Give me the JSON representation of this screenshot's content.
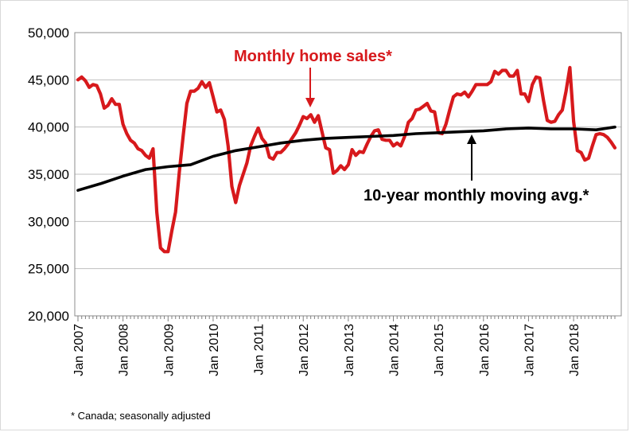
{
  "chart_data": {
    "type": "line",
    "ylim": [
      20000,
      50000
    ],
    "yticks": [
      "20,000",
      "25,000",
      "30,000",
      "35,000",
      "40,000",
      "45,000",
      "50,000"
    ],
    "ytick_values": [
      20000,
      25000,
      30000,
      35000,
      40000,
      45000,
      50000
    ],
    "xticks": [
      "Jan 2007",
      "Jan 2008",
      "Jan 2009",
      "Jan 2010",
      "Jan 2011",
      "Jan 2012",
      "Jan 2013",
      "Jan 2014",
      "Jan 2015",
      "Jan 2016",
      "Jan 2017",
      "Jan 2018"
    ],
    "xlim": [
      "2007-01",
      "2018-12"
    ],
    "grid": "horizontal",
    "colors": {
      "monthly": "#d7191c",
      "average": "#000000"
    },
    "series": [
      {
        "name": "Monthly home sales*",
        "points": [
          [
            "2007-01",
            45000
          ],
          [
            "2007-02",
            45300
          ],
          [
            "2007-03",
            44900
          ],
          [
            "2007-04",
            44200
          ],
          [
            "2007-05",
            44500
          ],
          [
            "2007-06",
            44400
          ],
          [
            "2007-07",
            43500
          ],
          [
            "2007-08",
            42000
          ],
          [
            "2007-09",
            42300
          ],
          [
            "2007-10",
            43000
          ],
          [
            "2007-11",
            42400
          ],
          [
            "2007-12",
            42400
          ],
          [
            "2008-01",
            40300
          ],
          [
            "2008-02",
            39300
          ],
          [
            "2008-03",
            38600
          ],
          [
            "2008-04",
            38300
          ],
          [
            "2008-05",
            37700
          ],
          [
            "2008-06",
            37500
          ],
          [
            "2008-07",
            37000
          ],
          [
            "2008-08",
            36700
          ],
          [
            "2008-09",
            37700
          ],
          [
            "2008-10",
            31000
          ],
          [
            "2008-11",
            27200
          ],
          [
            "2008-12",
            26800
          ],
          [
            "2009-01",
            26800
          ],
          [
            "2009-02",
            29000
          ],
          [
            "2009-03",
            31000
          ],
          [
            "2009-04",
            35200
          ],
          [
            "2009-05",
            39000
          ],
          [
            "2009-06",
            42500
          ],
          [
            "2009-07",
            43800
          ],
          [
            "2009-08",
            43800
          ],
          [
            "2009-09",
            44100
          ],
          [
            "2009-10",
            44800
          ],
          [
            "2009-11",
            44200
          ],
          [
            "2009-12",
            44700
          ],
          [
            "2010-01",
            43200
          ],
          [
            "2010-02",
            41600
          ],
          [
            "2010-03",
            41800
          ],
          [
            "2010-04",
            40800
          ],
          [
            "2010-05",
            38000
          ],
          [
            "2010-06",
            33700
          ],
          [
            "2010-07",
            32000
          ],
          [
            "2010-08",
            33800
          ],
          [
            "2010-09",
            35000
          ],
          [
            "2010-10",
            36200
          ],
          [
            "2010-11",
            38000
          ],
          [
            "2010-12",
            39000
          ],
          [
            "2011-01",
            39900
          ],
          [
            "2011-02",
            38800
          ],
          [
            "2011-03",
            38300
          ],
          [
            "2011-04",
            36800
          ],
          [
            "2011-05",
            36600
          ],
          [
            "2011-06",
            37300
          ],
          [
            "2011-07",
            37300
          ],
          [
            "2011-08",
            37700
          ],
          [
            "2011-09",
            38200
          ],
          [
            "2011-10",
            38800
          ],
          [
            "2011-11",
            39400
          ],
          [
            "2011-12",
            40200
          ],
          [
            "2012-01",
            41100
          ],
          [
            "2012-02",
            40900
          ],
          [
            "2012-03",
            41300
          ],
          [
            "2012-04",
            40500
          ],
          [
            "2012-05",
            41200
          ],
          [
            "2012-06",
            39500
          ],
          [
            "2012-07",
            37800
          ],
          [
            "2012-08",
            37600
          ],
          [
            "2012-09",
            35100
          ],
          [
            "2012-10",
            35400
          ],
          [
            "2012-11",
            35900
          ],
          [
            "2012-12",
            35500
          ],
          [
            "2013-01",
            36000
          ],
          [
            "2013-02",
            37600
          ],
          [
            "2013-03",
            37000
          ],
          [
            "2013-04",
            37400
          ],
          [
            "2013-05",
            37300
          ],
          [
            "2013-06",
            38200
          ],
          [
            "2013-07",
            39000
          ],
          [
            "2013-08",
            39600
          ],
          [
            "2013-09",
            39700
          ],
          [
            "2013-10",
            38700
          ],
          [
            "2013-11",
            38600
          ],
          [
            "2013-12",
            38600
          ],
          [
            "2014-01",
            38000
          ],
          [
            "2014-02",
            38300
          ],
          [
            "2014-03",
            38000
          ],
          [
            "2014-04",
            39000
          ],
          [
            "2014-05",
            40500
          ],
          [
            "2014-06",
            40900
          ],
          [
            "2014-07",
            41800
          ],
          [
            "2014-08",
            41900
          ],
          [
            "2014-09",
            42200
          ],
          [
            "2014-10",
            42500
          ],
          [
            "2014-11",
            41700
          ],
          [
            "2014-12",
            41600
          ],
          [
            "2015-01",
            39400
          ],
          [
            "2015-02",
            39300
          ],
          [
            "2015-03",
            40300
          ],
          [
            "2015-04",
            41800
          ],
          [
            "2015-05",
            43200
          ],
          [
            "2015-06",
            43500
          ],
          [
            "2015-07",
            43400
          ],
          [
            "2015-08",
            43700
          ],
          [
            "2015-09",
            43200
          ],
          [
            "2015-10",
            43800
          ],
          [
            "2015-11",
            44500
          ],
          [
            "2015-12",
            44500
          ],
          [
            "2016-01",
            44500
          ],
          [
            "2016-02",
            44500
          ],
          [
            "2016-03",
            44800
          ],
          [
            "2016-04",
            45900
          ],
          [
            "2016-05",
            45600
          ],
          [
            "2016-06",
            46000
          ],
          [
            "2016-07",
            46000
          ],
          [
            "2016-08",
            45400
          ],
          [
            "2016-09",
            45400
          ],
          [
            "2016-10",
            46000
          ],
          [
            "2016-11",
            43500
          ],
          [
            "2016-12",
            43500
          ],
          [
            "2017-01",
            42700
          ],
          [
            "2017-02",
            44500
          ],
          [
            "2017-03",
            45300
          ],
          [
            "2017-04",
            45200
          ],
          [
            "2017-05",
            42800
          ],
          [
            "2017-06",
            40700
          ],
          [
            "2017-07",
            40500
          ],
          [
            "2017-08",
            40600
          ],
          [
            "2017-09",
            41300
          ],
          [
            "2017-10",
            41800
          ],
          [
            "2017-11",
            43800
          ],
          [
            "2017-12",
            46300
          ],
          [
            "2018-01",
            40600
          ],
          [
            "2018-02",
            37500
          ],
          [
            "2018-03",
            37300
          ],
          [
            "2018-04",
            36500
          ],
          [
            "2018-05",
            36700
          ],
          [
            "2018-06",
            38000
          ],
          [
            "2018-07",
            39200
          ],
          [
            "2018-08",
            39300
          ],
          [
            "2018-09",
            39200
          ],
          [
            "2018-10",
            38900
          ],
          [
            "2018-11",
            38400
          ],
          [
            "2018-12",
            37800
          ]
        ]
      },
      {
        "name": "10-year monthly moving avg.*",
        "points": [
          [
            "2007-01",
            33300
          ],
          [
            "2007-07",
            34000
          ],
          [
            "2008-01",
            34800
          ],
          [
            "2008-07",
            35500
          ],
          [
            "2009-01",
            35800
          ],
          [
            "2009-07",
            36000
          ],
          [
            "2010-01",
            36900
          ],
          [
            "2010-07",
            37500
          ],
          [
            "2011-01",
            37900
          ],
          [
            "2011-07",
            38300
          ],
          [
            "2012-01",
            38600
          ],
          [
            "2012-07",
            38800
          ],
          [
            "2013-01",
            38900
          ],
          [
            "2013-07",
            39000
          ],
          [
            "2014-01",
            39100
          ],
          [
            "2014-07",
            39300
          ],
          [
            "2015-01",
            39400
          ],
          [
            "2015-07",
            39500
          ],
          [
            "2016-01",
            39600
          ],
          [
            "2016-07",
            39800
          ],
          [
            "2017-01",
            39900
          ],
          [
            "2017-07",
            39800
          ],
          [
            "2018-01",
            39800
          ],
          [
            "2018-07",
            39700
          ],
          [
            "2018-12",
            40000
          ]
        ]
      }
    ],
    "annotations": [
      "Monthly home sales*",
      "10-year monthly moving avg.*"
    ]
  },
  "footnote": "* Canada; seasonally adjusted"
}
